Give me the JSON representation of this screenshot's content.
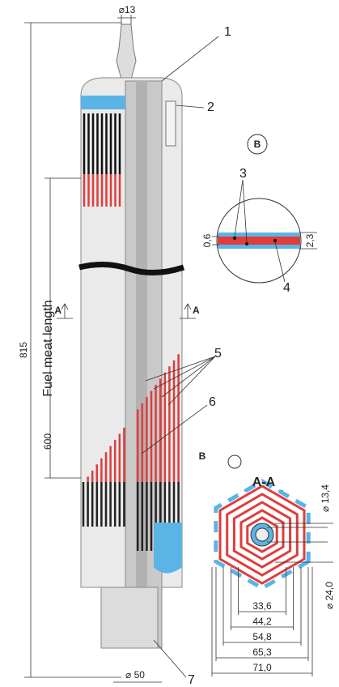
{
  "dimensions": {
    "top_diameter": "⌀13",
    "overall_length": "815",
    "fuel_meat_length_label": "Fuel meat length",
    "fuel_meat_length": "600",
    "bottom_diameter": "⌀ 50"
  },
  "callouts": [
    "1",
    "2",
    "3",
    "4",
    "5",
    "6",
    "7"
  ],
  "section_marks": {
    "left": "A",
    "right": "A"
  },
  "detail_b": {
    "label": "B",
    "thickness_inner": "0,6",
    "thickness_outer": "2,3"
  },
  "section_aa": {
    "title": "A-A",
    "detail_ref": "B",
    "inner_diameter": "⌀ 13,4",
    "tube_diameter": "⌀ 24,0",
    "widths": [
      "33,6",
      "44,2",
      "54,8",
      "65,3",
      "71,0"
    ]
  }
}
